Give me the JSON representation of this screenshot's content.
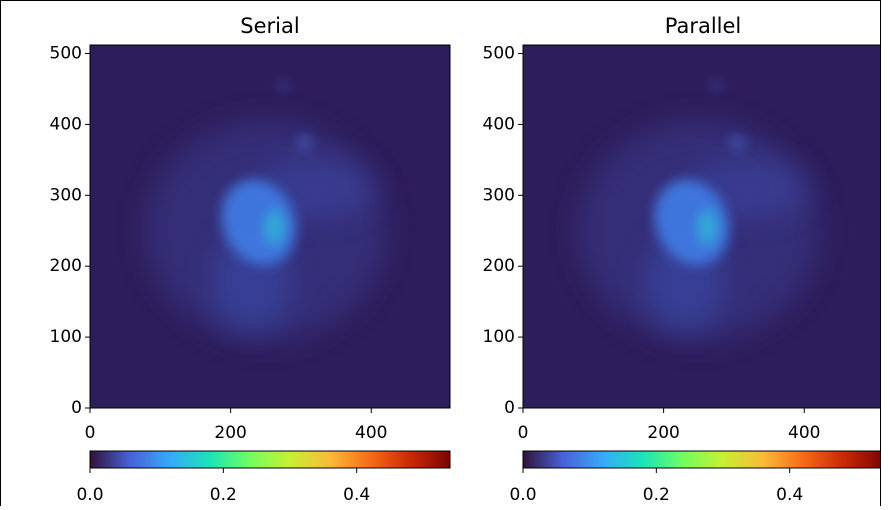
{
  "chart_data": [
    {
      "type": "image",
      "title": "Serial",
      "xlim": [
        0,
        512
      ],
      "ylim": [
        0,
        512
      ],
      "xticks": [
        0,
        200,
        400
      ],
      "yticks": [
        0,
        100,
        200,
        300,
        400,
        500
      ],
      "colorbar": {
        "lim": [
          0,
          0.54
        ],
        "ticks": [
          {
            "value": 0,
            "label": "0.0"
          },
          0.2,
          0.4
        ]
      },
      "colormap": [
        "#30123b",
        "#4662d7",
        "#36aaf9",
        "#1ae4b6",
        "#72fe5e",
        "#c8ef34",
        "#faba39",
        "#f66b19",
        "#ca2a04",
        "#7a0403"
      ]
    },
    {
      "type": "image",
      "title": "Parallel",
      "xlim": [
        0,
        512
      ],
      "ylim": [
        0,
        512
      ],
      "xticks": [
        0,
        200,
        400
      ],
      "yticks": [
        0,
        100,
        200,
        300,
        400,
        500
      ],
      "colorbar": {
        "lim": [
          0,
          0.54
        ],
        "ticks": [
          {
            "value": 0,
            "label": "0.0"
          },
          0.2,
          0.4
        ]
      },
      "colormap": [
        "#30123b",
        "#4662d7",
        "#36aaf9",
        "#1ae4b6",
        "#72fe5e",
        "#c8ef34",
        "#faba39",
        "#f66b19",
        "#ca2a04",
        "#7a0403"
      ]
    }
  ]
}
